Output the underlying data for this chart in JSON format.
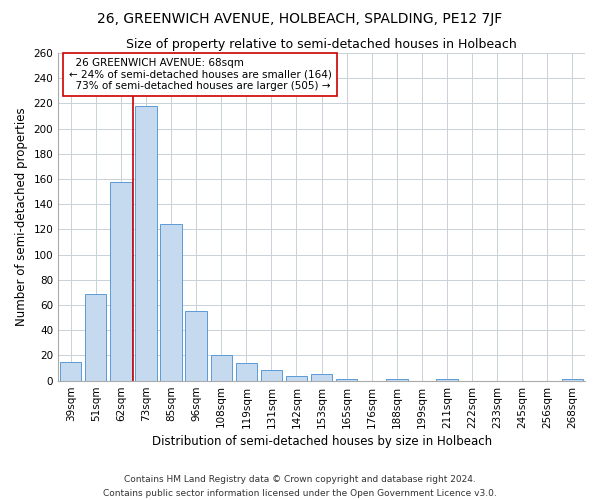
{
  "title": "26, GREENWICH AVENUE, HOLBEACH, SPALDING, PE12 7JF",
  "subtitle": "Size of property relative to semi-detached houses in Holbeach",
  "xlabel": "Distribution of semi-detached houses by size in Holbeach",
  "ylabel": "Number of semi-detached properties",
  "categories": [
    "39sqm",
    "51sqm",
    "62sqm",
    "73sqm",
    "85sqm",
    "96sqm",
    "108sqm",
    "119sqm",
    "131sqm",
    "142sqm",
    "153sqm",
    "165sqm",
    "176sqm",
    "188sqm",
    "199sqm",
    "211sqm",
    "222sqm",
    "233sqm",
    "245sqm",
    "256sqm",
    "268sqm"
  ],
  "values": [
    15,
    69,
    158,
    218,
    124,
    55,
    20,
    14,
    8,
    4,
    5,
    1,
    0,
    1,
    0,
    1,
    0,
    0,
    0,
    0,
    1
  ],
  "bar_color": "#c5d9ef",
  "bar_edge_color": "#5b9bd5",
  "vline_x_index": 2.5,
  "property_label": "26 GREENWICH AVENUE: 68sqm",
  "pct_smaller": 24,
  "count_smaller": 164,
  "pct_larger": 73,
  "count_larger": 505,
  "vline_color": "#cc0000",
  "annotation_box_color": "#cc0000",
  "ylim": [
    0,
    260
  ],
  "yticks": [
    0,
    20,
    40,
    60,
    80,
    100,
    120,
    140,
    160,
    180,
    200,
    220,
    240,
    260
  ],
  "footer1": "Contains HM Land Registry data © Crown copyright and database right 2024.",
  "footer2": "Contains public sector information licensed under the Open Government Licence v3.0.",
  "bg_color": "#ffffff",
  "grid_color": "#c8d0d8",
  "title_fontsize": 10,
  "subtitle_fontsize": 9,
  "axis_label_fontsize": 8.5,
  "tick_fontsize": 7.5,
  "annotation_fontsize": 7.5,
  "footer_fontsize": 6.5
}
